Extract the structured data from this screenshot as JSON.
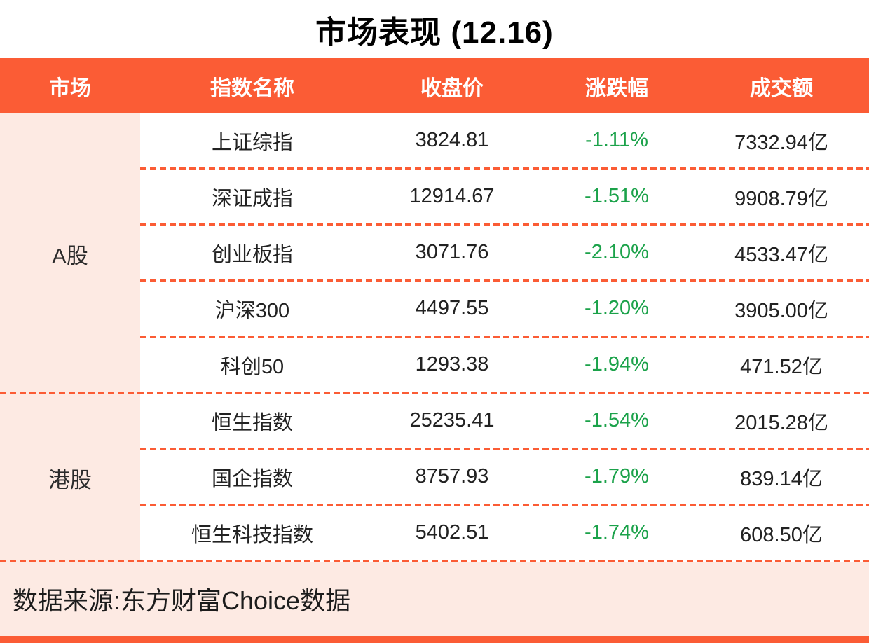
{
  "title": "市场表现 (12.16)",
  "colors": {
    "accent_orange": "#FB5C35",
    "light_pink_bg": "#FDEAE3",
    "negative_green": "#1BA24A",
    "header_text": "#FFFFFF",
    "body_text": "#222222"
  },
  "table": {
    "headers": {
      "market": "市场",
      "index_name": "指数名称",
      "close": "收盘价",
      "change": "涨跌幅",
      "turnover": "成交额"
    },
    "groups": [
      {
        "market": "A股",
        "rows": [
          {
            "name": "上证综指",
            "close": "3824.81",
            "change": "-1.11%",
            "turnover": "7332.94亿"
          },
          {
            "name": "深证成指",
            "close": "12914.67",
            "change": "-1.51%",
            "turnover": "9908.79亿"
          },
          {
            "name": "创业板指",
            "close": "3071.76",
            "change": "-2.10%",
            "turnover": "4533.47亿"
          },
          {
            "name": "沪深300",
            "close": "4497.55",
            "change": "-1.20%",
            "turnover": "3905.00亿"
          },
          {
            "name": "科创50",
            "close": "1293.38",
            "change": "-1.94%",
            "turnover": "471.52亿"
          }
        ]
      },
      {
        "market": "港股",
        "rows": [
          {
            "name": "恒生指数",
            "close": "25235.41",
            "change": "-1.54%",
            "turnover": "2015.28亿"
          },
          {
            "name": "国企指数",
            "close": "8757.93",
            "change": "-1.79%",
            "turnover": "839.14亿"
          },
          {
            "name": "恒生科技指数",
            "close": "5402.51",
            "change": "-1.74%",
            "turnover": "608.50亿"
          }
        ]
      }
    ]
  },
  "footer": {
    "source": "数据来源:东方财富Choice数据"
  },
  "chart_data": {
    "type": "table",
    "title": "市场表现 (12.16)",
    "columns": [
      "市场",
      "指数名称",
      "收盘价",
      "涨跌幅",
      "成交额"
    ],
    "rows": [
      [
        "A股",
        "上证综指",
        3824.81,
        "-1.11%",
        "7332.94亿"
      ],
      [
        "A股",
        "深证成指",
        12914.67,
        "-1.51%",
        "9908.79亿"
      ],
      [
        "A股",
        "创业板指",
        3071.76,
        "-2.10%",
        "4533.47亿"
      ],
      [
        "A股",
        "沪深300",
        4497.55,
        "-1.20%",
        "3905.00亿"
      ],
      [
        "A股",
        "科创50",
        1293.38,
        "-1.94%",
        "471.52亿"
      ],
      [
        "港股",
        "恒生指数",
        25235.41,
        "-1.54%",
        "2015.28亿"
      ],
      [
        "港股",
        "国企指数",
        8757.93,
        "-1.79%",
        "839.14亿"
      ],
      [
        "港股",
        "恒生科技指数",
        5402.51,
        "-1.74%",
        "608.50亿"
      ]
    ],
    "source": "数据来源:东方财富Choice数据"
  }
}
